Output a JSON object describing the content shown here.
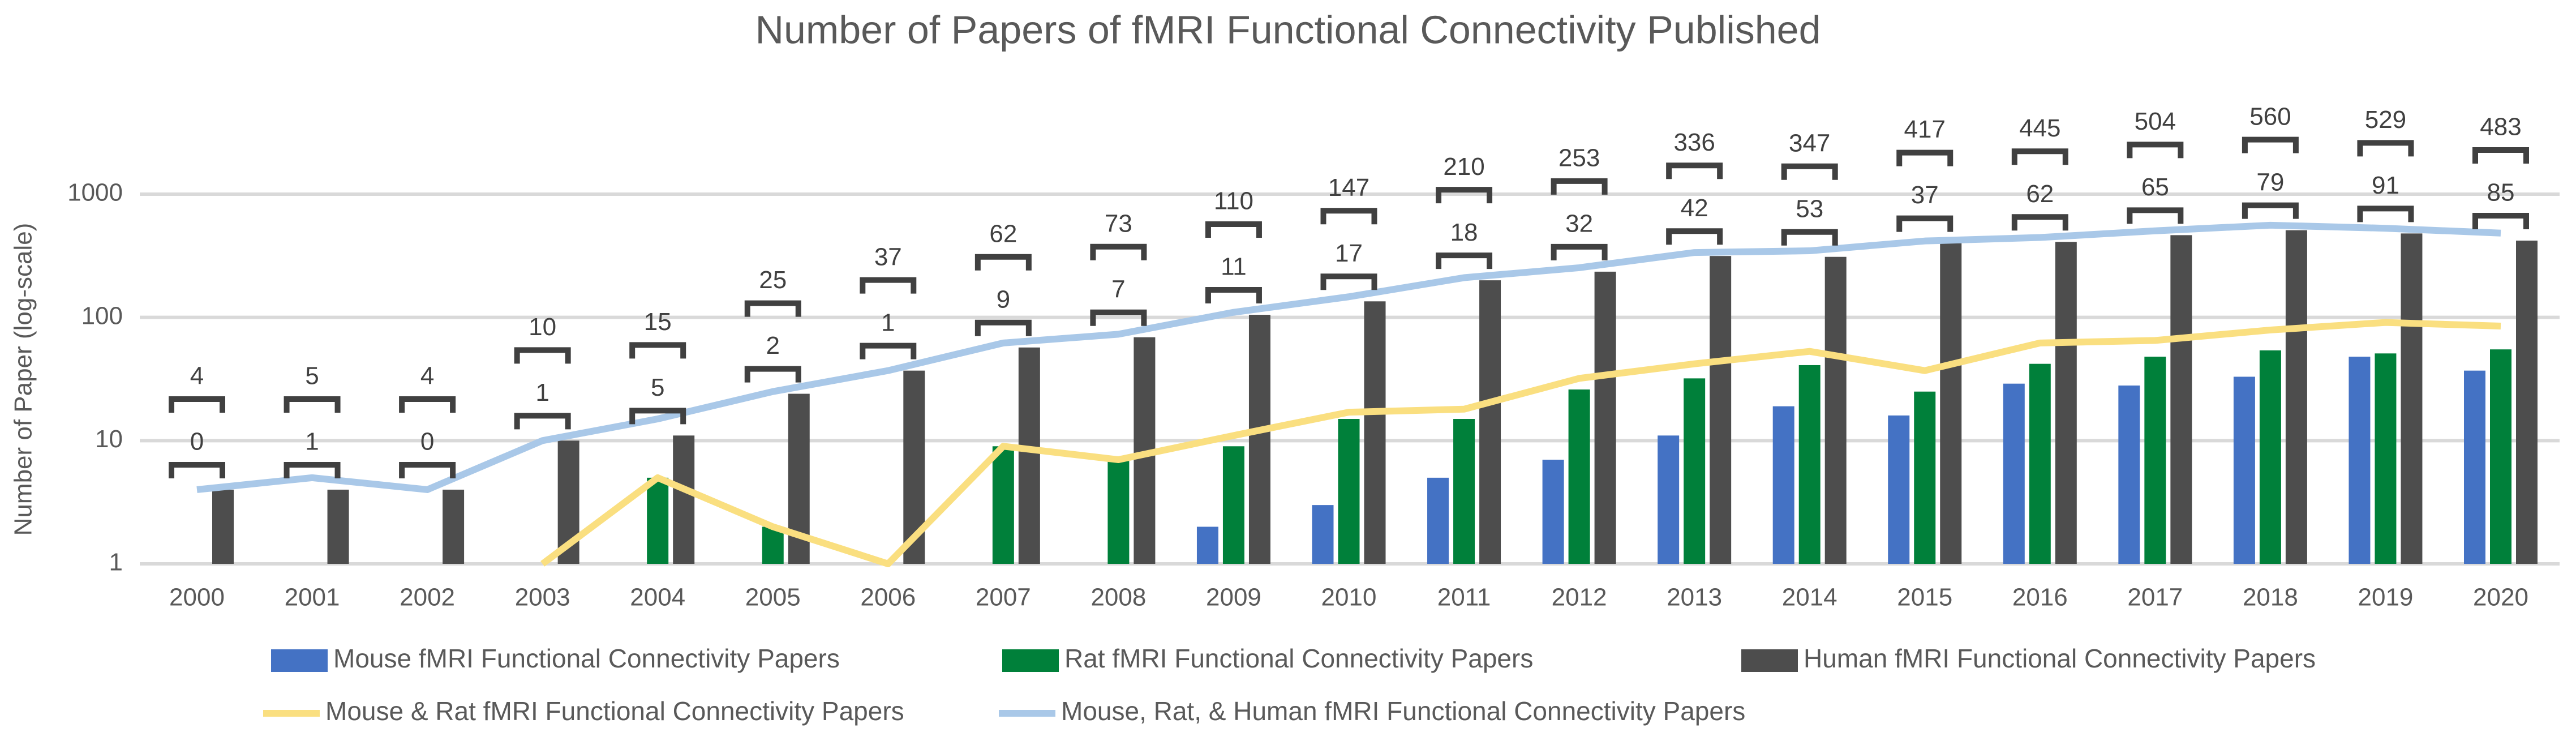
{
  "chart_data": {
    "type": "bar",
    "title": "Number of Papers of fMRI Functional Connectivity Published",
    "y_label": "Number of Paper (log-scale)",
    "log_scale": true,
    "grid": true,
    "categories": [
      "2000",
      "2001",
      "2002",
      "2003",
      "2004",
      "2005",
      "2006",
      "2007",
      "2008",
      "2009",
      "2010",
      "2011",
      "2012",
      "2013",
      "2014",
      "2015",
      "2016",
      "2017",
      "2018",
      "2019",
      "2020"
    ],
    "ylim": [
      1,
      1000
    ],
    "yticks": [
      1,
      10,
      100,
      1000
    ],
    "series": [
      {
        "name": "Mouse fMRI Functional Connectivity Papers",
        "type": "bar",
        "color": "#4472c4",
        "values": [
          null,
          null,
          null,
          null,
          null,
          null,
          null,
          null,
          null,
          2,
          3,
          5,
          7,
          11,
          19,
          16,
          29,
          28,
          33,
          48,
          37
        ]
      },
      {
        "name": "Rat fMRI Functional Connectivity Papers",
        "type": "bar",
        "color": "#00803a",
        "values": [
          null,
          null,
          null,
          null,
          5,
          2,
          null,
          9,
          7,
          9,
          15,
          15,
          26,
          32,
          41,
          25,
          42,
          48,
          54,
          51,
          55
        ]
      },
      {
        "name": "Human fMRI Functional Connectivity Papers",
        "type": "bar",
        "color": "#4d4d4d",
        "values": [
          4,
          4,
          4,
          10,
          11,
          24,
          37,
          57,
          69,
          105,
          135,
          200,
          235,
          315,
          310,
          400,
          410,
          465,
          510,
          480,
          420
        ]
      },
      {
        "name": "Mouse & Rat fMRI Functional Connectivity Papers",
        "type": "line",
        "color": "#fadf80",
        "values": [
          0,
          1,
          0,
          1,
          5,
          2,
          1,
          9,
          7,
          11,
          17,
          18,
          32,
          42,
          53,
          37,
          62,
          65,
          79,
          91,
          85
        ]
      },
      {
        "name": "Mouse, Rat, & Human fMRI Functional Connectivity Papers",
        "type": "line",
        "color": "#a9c8e8",
        "values": [
          4,
          5,
          4,
          10,
          15,
          25,
          37,
          62,
          73,
          110,
          147,
          210,
          253,
          336,
          347,
          417,
          445,
          504,
          560,
          529,
          483
        ]
      }
    ]
  }
}
